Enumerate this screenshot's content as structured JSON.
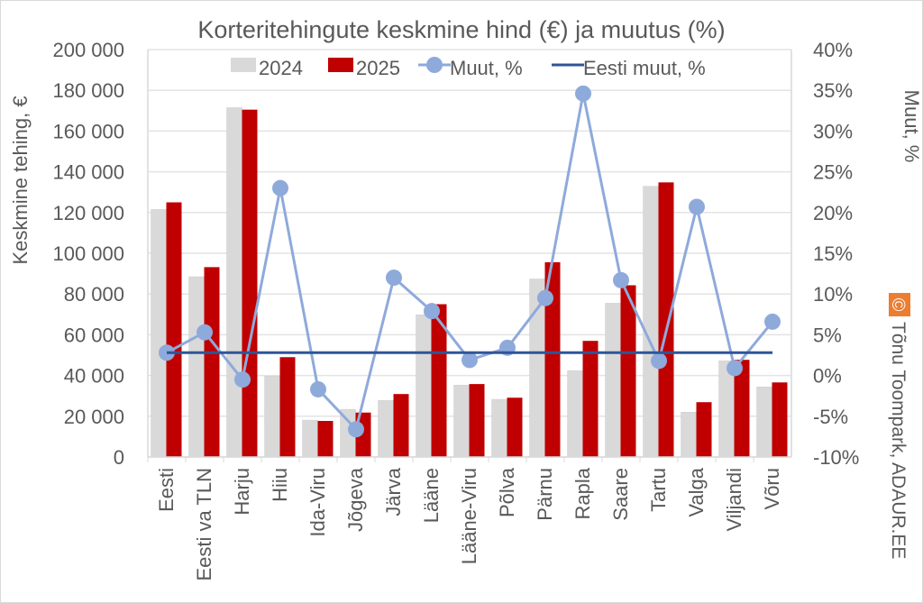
{
  "chart_data": {
    "type": "bar",
    "title": "Korteritehingute keskmine hind (€) ja muutus (%)",
    "ylabel": "Keskmine tehing, €",
    "y2label": "Muut, %",
    "ylim": [
      0,
      200000
    ],
    "y2lim": [
      -10,
      40
    ],
    "yticks": [
      "0",
      "20 000",
      "40 000",
      "60 000",
      "80 000",
      "100 000",
      "120 000",
      "140 000",
      "160 000",
      "180 000",
      "200 000"
    ],
    "y2ticks": [
      "-10%",
      "-5%",
      "0%",
      "5%",
      "10%",
      "15%",
      "20%",
      "25%",
      "30%",
      "35%",
      "40%"
    ],
    "grid": true,
    "legend_position": "top",
    "categories": [
      "Eesti",
      "Eesti va TLN",
      "Harju",
      "Hiiu",
      "Ida-Viru",
      "Jõgeva",
      "Järva",
      "Lääne",
      "Lääne-Viru",
      "Põlva",
      "Pärnu",
      "Rapla",
      "Saare",
      "Tartu",
      "Valga",
      "Viljandi",
      "Võru"
    ],
    "series": [
      {
        "name": "2024",
        "type": "bar",
        "axis": "left",
        "color": "#d9d9d9",
        "values": [
          121500,
          88500,
          171500,
          39700,
          18100,
          23400,
          27800,
          69800,
          35300,
          28300,
          87400,
          42400,
          75500,
          132900,
          22000,
          47200,
          34400
        ]
      },
      {
        "name": "2025",
        "type": "bar",
        "axis": "left",
        "color": "#c00000",
        "values": [
          125000,
          93200,
          170500,
          49000,
          17700,
          21800,
          30900,
          75000,
          35800,
          29100,
          95600,
          57000,
          84300,
          134800,
          26900,
          47700,
          36600
        ]
      },
      {
        "name": "Muut, %",
        "type": "line",
        "axis": "right",
        "color": "#8eaadb",
        "values": [
          2.8,
          5.3,
          -0.5,
          23.0,
          -1.7,
          -6.6,
          12.0,
          7.9,
          1.9,
          3.4,
          9.5,
          34.6,
          11.7,
          1.8,
          20.7,
          0.9,
          6.6
        ]
      },
      {
        "name": "Eesti muut, %",
        "type": "line",
        "axis": "right",
        "color": "#2f5597",
        "values": [
          2.8,
          2.8,
          2.8,
          2.8,
          2.8,
          2.8,
          2.8,
          2.8,
          2.8,
          2.8,
          2.8,
          2.8,
          2.8,
          2.8,
          2.8,
          2.8,
          2.8
        ]
      }
    ]
  },
  "copyright": {
    "symbol": "©",
    "text": "Tõnu Toompark, ADAUR.EE",
    "color": "#ed7d31"
  }
}
